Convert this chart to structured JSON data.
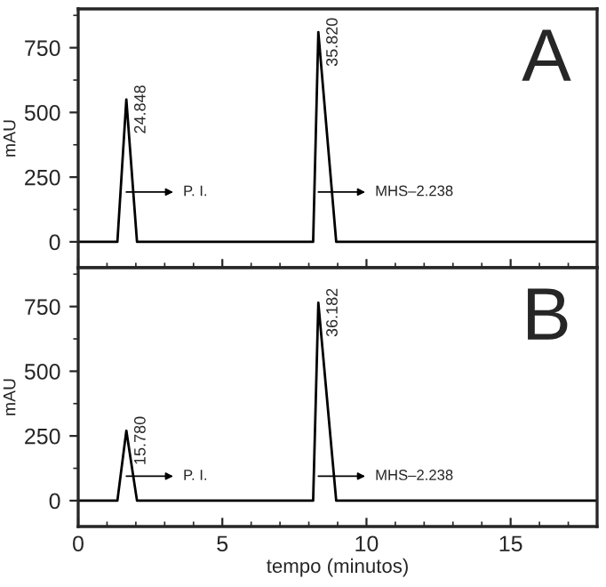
{
  "chart_data": [
    {
      "type": "line",
      "x": [
        0,
        1.36,
        1.67,
        2.04,
        8.15,
        8.33,
        8.95,
        18
      ],
      "ylabel": "mAU",
      "series": [
        {
          "color": "#000000",
          "values": [
            0,
            0,
            550,
            0,
            0,
            810,
            0,
            0
          ]
        }
      ],
      "xlim": [
        0,
        18
      ],
      "xticks": [
        0,
        5,
        10,
        15
      ],
      "ylim": [
        -100,
        900
      ],
      "yticks": [
        0,
        250,
        500,
        750
      ],
      "tick_labels": "y",
      "grid": false,
      "legend": false,
      "annotations": [
        "24.848",
        "35.820",
        "P. I.",
        "MHS–2.238",
        "A"
      ]
    },
    {
      "type": "line",
      "x": [
        0,
        1.36,
        1.67,
        2.04,
        8.15,
        8.33,
        8.95,
        18
      ],
      "xlabel": "tempo (minutos)",
      "ylabel": "mAU",
      "series": [
        {
          "color": "#000000",
          "values": [
            0,
            0,
            270,
            0,
            0,
            765,
            0,
            0
          ]
        }
      ],
      "xlim": [
        0,
        18
      ],
      "xticks": [
        0,
        5,
        10,
        15
      ],
      "ylim": [
        -100,
        900
      ],
      "yticks": [
        0,
        250,
        500,
        750
      ],
      "grid": false,
      "legend": false,
      "annotations": [
        "15.780",
        "36.182",
        "P. I.",
        "MHS–2.238",
        "B"
      ]
    }
  ]
}
